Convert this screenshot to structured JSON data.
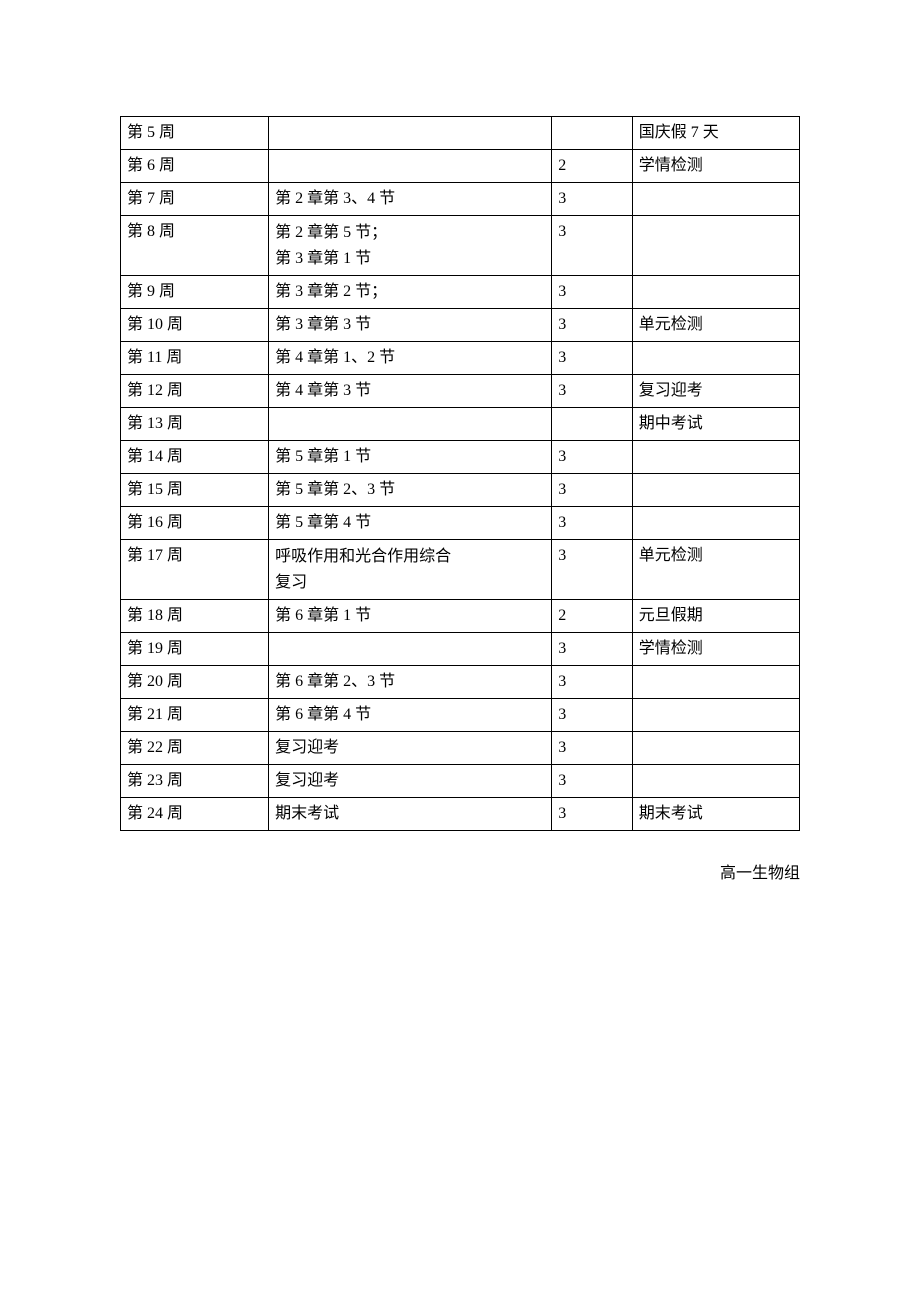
{
  "table": {
    "col_widths": [
      "140px",
      "280px",
      "70px",
      "160px"
    ],
    "rows": [
      {
        "c1": "第 5 周",
        "c2": "",
        "c3": "",
        "c4": "国庆假 7 天"
      },
      {
        "c1": "第 6 周",
        "c2": "",
        "c3": "2",
        "c4": "学情检测"
      },
      {
        "c1": "第 7 周",
        "c2": "第 2 章第 3、4 节",
        "c3": "3",
        "c4": ""
      },
      {
        "c1": "第 8 周",
        "c2_lines": [
          "第 2 章第 5 节；",
          "第 3 章第 1 节"
        ],
        "c3": "3",
        "c4": ""
      },
      {
        "c1": "第 9 周",
        "c2": "第 3 章第 2 节；",
        "c3": "3",
        "c4": ""
      },
      {
        "c1": "第 10 周",
        "c2": "第 3 章第 3 节",
        "c3": "3",
        "c4": "单元检测"
      },
      {
        "c1": "第 11 周",
        "c2": "第 4 章第 1、2 节",
        "c3": "3",
        "c4": ""
      },
      {
        "c1": "第 12 周",
        "c2": "第 4 章第 3 节",
        "c3": "3",
        "c4": "复习迎考"
      },
      {
        "c1": "第 13 周",
        "c2": "",
        "c3": "",
        "c4": "期中考试"
      },
      {
        "c1": "第 14 周",
        "c2": "第 5 章第 1 节",
        "c3": "3",
        "c4": ""
      },
      {
        "c1": "第 15 周",
        "c2": "第 5 章第 2、3 节",
        "c3": "3",
        "c4": ""
      },
      {
        "c1": "第 16 周",
        "c2": "第 5 章第 4 节",
        "c3": "3",
        "c4": ""
      },
      {
        "c1": "第 17 周",
        "c2_lines": [
          "呼吸作用和光合作用综合",
          "复习"
        ],
        "c3": "3",
        "c4": "单元检测"
      },
      {
        "c1": "第 18 周",
        "c2": "第 6 章第 1 节",
        "c3": "2",
        "c4": "元旦假期"
      },
      {
        "c1": "第 19 周",
        "c2": "",
        "c3": "3",
        "c4": "学情检测"
      },
      {
        "c1": "第 20 周",
        "c2": "第 6 章第 2、3 节",
        "c3": "3",
        "c4": ""
      },
      {
        "c1": "第 21 周",
        "c2": "第 6 章第 4 节",
        "c3": "3",
        "c4": ""
      },
      {
        "c1": "第 22 周",
        "c2": "复习迎考",
        "c3": "3",
        "c4": ""
      },
      {
        "c1": "第 23 周",
        "c2": "复习迎考",
        "c3": "3",
        "c4": ""
      },
      {
        "c1": "第 24 周",
        "c2": "期末考试",
        "c3": "3",
        "c4": "期末考试"
      }
    ]
  },
  "signature": "高一生物组"
}
